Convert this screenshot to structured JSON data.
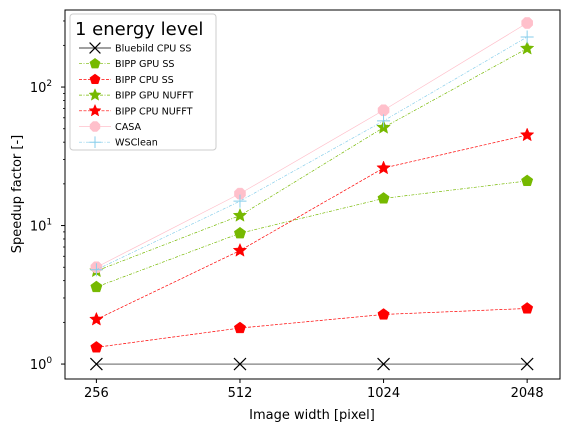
{
  "chart_data": {
    "type": "line",
    "title": "",
    "legend_title": "1 energy level",
    "legend_placement": "top-left",
    "xlabel": "Image width [pixel]",
    "ylabel": "Speedup factor [-]",
    "x_scale": "log2",
    "y_scale": "log",
    "categories": [
      "256",
      "512",
      "1024",
      "2048"
    ],
    "x": [
      256,
      512,
      1024,
      2048
    ],
    "yticks": [
      {
        "value": 1,
        "base": "10",
        "exp": "0"
      },
      {
        "value": 10,
        "base": "10",
        "exp": "1"
      },
      {
        "value": 100,
        "base": "10",
        "exp": "2"
      }
    ],
    "ylim": [
      0.78,
      360
    ],
    "grid": false,
    "series": [
      {
        "name": "Bluebild CPU SS",
        "values": [
          1.0,
          1.0,
          1.0,
          1.0
        ],
        "color": "#000000",
        "marker": "x-mark",
        "line": "solid"
      },
      {
        "name": "BIPP GPU SS",
        "values": [
          3.6,
          8.8,
          15.7,
          21.0
        ],
        "color": "#76b900",
        "marker": "pentagon",
        "line": "dash-dot"
      },
      {
        "name": "BIPP CPU SS",
        "values": [
          1.32,
          1.82,
          2.28,
          2.52
        ],
        "color": "#ff0000",
        "marker": "pentagon",
        "line": "dashed"
      },
      {
        "name": "BIPP GPU NUFFT",
        "values": [
          4.7,
          11.8,
          51.0,
          190.0
        ],
        "color": "#76b900",
        "marker": "star",
        "line": "dash-dot"
      },
      {
        "name": "BIPP CPU NUFFT",
        "values": [
          2.1,
          6.6,
          26.0,
          45.0
        ],
        "color": "#ff0000",
        "marker": "star",
        "line": "dashed"
      },
      {
        "name": "CASA",
        "values": [
          5.0,
          17.0,
          68.0,
          290.0
        ],
        "color": "#ffc0cb",
        "marker": "octagon",
        "line": "solid"
      },
      {
        "name": "WSClean",
        "values": [
          4.8,
          15.0,
          57.0,
          230.0
        ],
        "color": "#87ceeb",
        "marker": "plus-mark",
        "line": "dash-dot"
      }
    ]
  }
}
